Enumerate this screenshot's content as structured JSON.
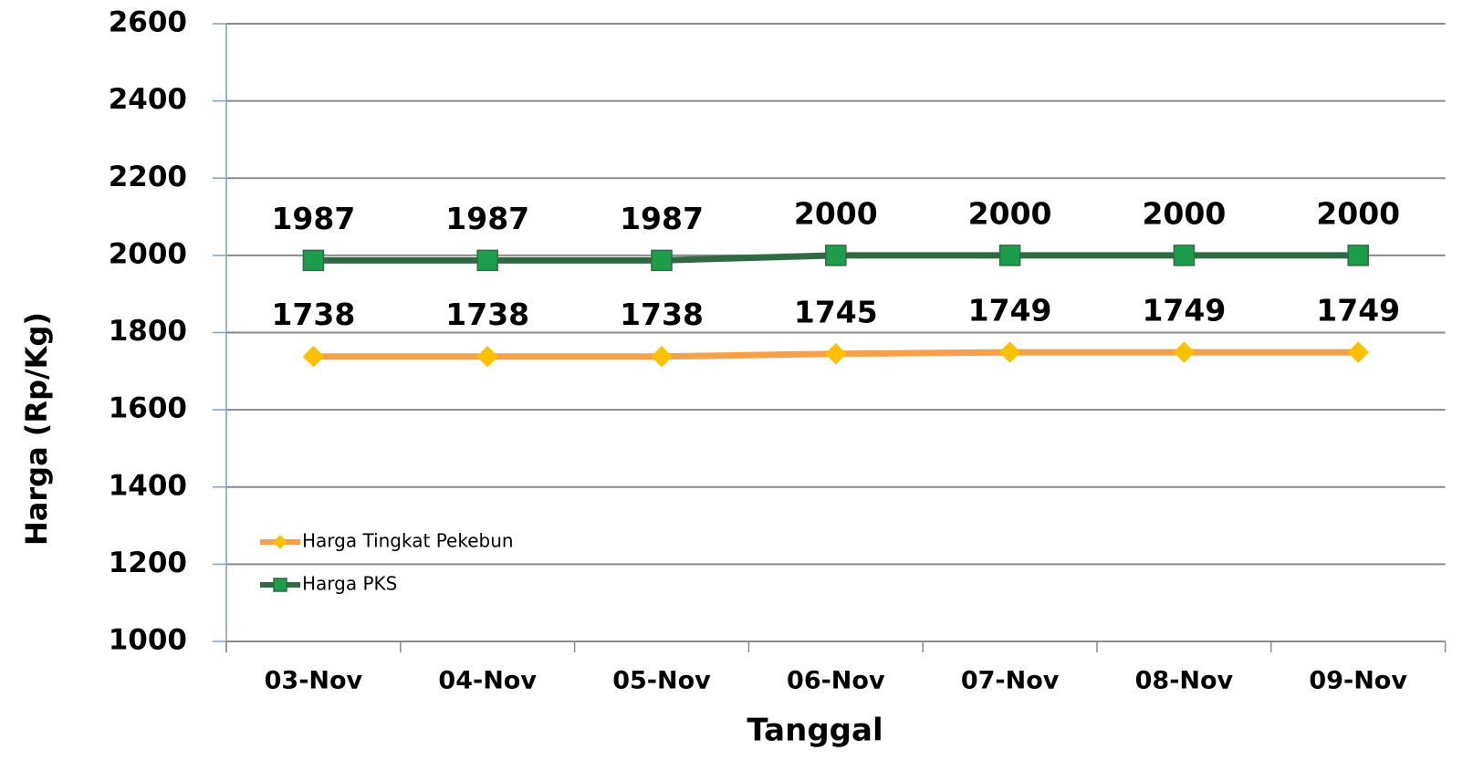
{
  "chart_data": {
    "type": "line",
    "x_label": "Tanggal",
    "y_label": "Harga (Rp/Kg)",
    "categories": [
      "03-Nov",
      "04-Nov",
      "05-Nov",
      "06-Nov",
      "07-Nov",
      "08-Nov",
      "09-Nov"
    ],
    "series": [
      {
        "name": "Harga Tingkat Pekebun",
        "color": "#f5a04a",
        "marker": "diamond",
        "marker_color": "#ffc000",
        "values": [
          1738,
          1738,
          1738,
          1745,
          1749,
          1749,
          1749
        ]
      },
      {
        "name": "Harga PKS",
        "color": "#2f6a45",
        "marker": "square",
        "marker_color": "#1c9e4b",
        "values": [
          1987,
          1987,
          1987,
          2000,
          2000,
          2000,
          2000
        ]
      }
    ],
    "ylim": [
      1000,
      2600
    ],
    "yticks": [
      1000,
      1200,
      1400,
      1600,
      1800,
      2000,
      2200,
      2400,
      2600
    ],
    "grid": true,
    "legend": "lower left"
  }
}
